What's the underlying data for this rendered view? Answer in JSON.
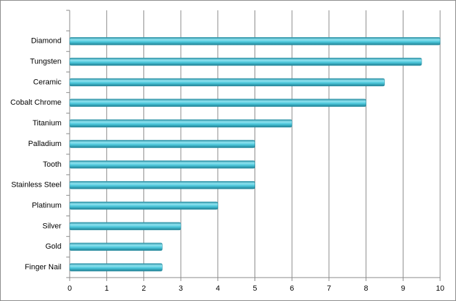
{
  "chart_data": {
    "type": "bar",
    "orientation": "horizontal",
    "categories": [
      null,
      "Diamond",
      "Tungsten",
      "Ceramic",
      "Cobalt Chrome",
      "Titanium",
      "Palladium",
      "Tooth",
      "Stainless Steel",
      "Platinum",
      "Silver",
      "Gold",
      "Finger Nail"
    ],
    "values": [
      null,
      10,
      9.5,
      8.5,
      8,
      6,
      5,
      5,
      5,
      4,
      3,
      2.5,
      2.5
    ],
    "color": "#4bc6da",
    "xlim": [
      0,
      10
    ],
    "xticks": [
      0,
      1,
      2,
      3,
      4,
      5,
      6,
      7,
      8,
      9,
      10
    ],
    "grid": true
  }
}
